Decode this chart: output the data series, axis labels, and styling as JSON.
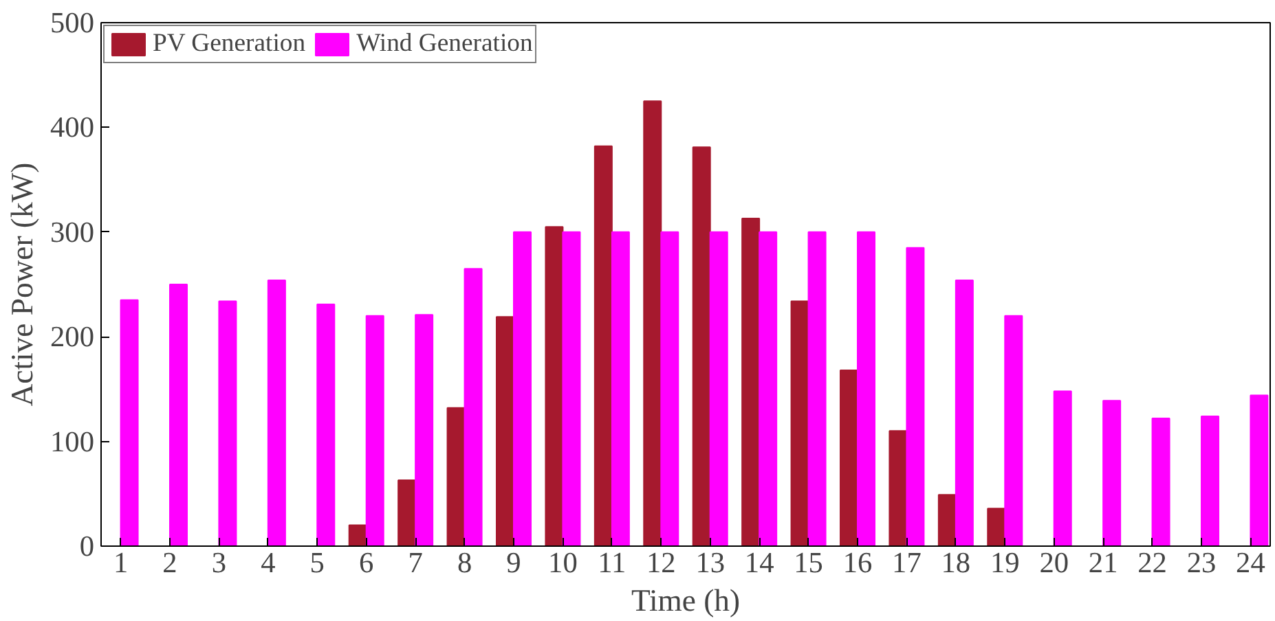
{
  "chart_data": {
    "type": "bar",
    "xlabel": "Time (h)",
    "ylabel": "Active Power (kW)",
    "x": [
      1,
      2,
      3,
      4,
      5,
      6,
      7,
      8,
      9,
      10,
      11,
      12,
      13,
      14,
      15,
      16,
      17,
      18,
      19,
      20,
      21,
      22,
      23,
      24
    ],
    "series": [
      {
        "name": "PV Generation",
        "color": "#a6192e",
        "values": [
          0,
          0,
          0,
          0,
          0,
          20,
          63,
          132,
          219,
          305,
          382,
          425,
          381,
          313,
          234,
          168,
          110,
          49,
          36,
          0,
          0,
          0,
          0,
          0
        ]
      },
      {
        "name": "Wind Generation",
        "color": "#ff00ff",
        "values": [
          235,
          250,
          234,
          254,
          231,
          220,
          221,
          265,
          300,
          300,
          300,
          300,
          300,
          300,
          300,
          300,
          285,
          254,
          220,
          148,
          139,
          122,
          124,
          144
        ]
      }
    ],
    "xlim": [
      0.6,
      24.4
    ],
    "xticks": [
      1,
      2,
      3,
      4,
      5,
      6,
      7,
      8,
      9,
      10,
      11,
      12,
      13,
      14,
      15,
      16,
      17,
      18,
      19,
      20,
      21,
      22,
      23,
      24
    ],
    "ylim": [
      0,
      500
    ],
    "yticks": [
      0,
      100,
      200,
      300,
      400,
      500
    ],
    "grid": false,
    "legend": "top left"
  }
}
